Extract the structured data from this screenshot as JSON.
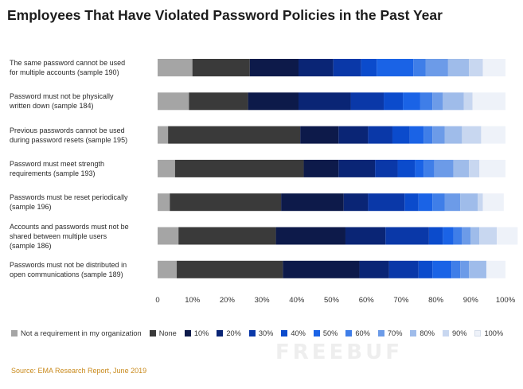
{
  "title": "Employees That Have Violated Password Policies in the Past Year",
  "source": "Source: EMA Research Report, June 2019",
  "watermark_text": "FREEBUF",
  "chart_data": {
    "type": "bar",
    "orientation": "horizontal",
    "stacked": true,
    "title": "Employees That Have Violated Password Policies in the Past Year",
    "xlabel": "",
    "ylabel": "",
    "xlim": [
      0,
      100
    ],
    "grid": false,
    "legend_position": "bottom",
    "x_ticks": [
      "0",
      "10%",
      "20%",
      "30%",
      "40%",
      "50%",
      "60%",
      "70%",
      "80%",
      "90%",
      "100%"
    ],
    "categories": [
      "The same password cannot be used for multiple accounts (sample 190)",
      "Password must not be physically written down (sample 184)",
      "Previous passwords cannot be used during password resets (sample 195)",
      "Password must meet strength requirements (sample 193)",
      "Passwords must be reset periodically (sample 196)",
      "Accounts and passwords must not be shared between multiple users (sample 186)",
      "Passwords must not be distributed in open communications (sample 189)"
    ],
    "category_lines": [
      [
        "The same password cannot be used",
        "for multiple accounts (sample 190)"
      ],
      [
        "Password must not be physically",
        "written down (sample 184)"
      ],
      [
        "Previous passwords cannot be used",
        "during password resets (sample 195)"
      ],
      [
        "Password must meet strength",
        "requirements (sample 193)"
      ],
      [
        "Passwords must be reset periodically",
        "(sample 196)"
      ],
      [
        "Accounts and passwords must not be",
        "shared between multiple users",
        "(sample 186)"
      ],
      [
        "Passwords must not be distributed in",
        "open communications (sample 189)"
      ]
    ],
    "series": [
      {
        "name": "Not a requirement in my organization",
        "color": "#a5a5a5",
        "values": [
          10,
          9,
          3,
          5,
          3.5,
          6,
          5.5
        ]
      },
      {
        "name": "None",
        "color": "#3a3a3a",
        "values": [
          16.5,
          17,
          38,
          37,
          32,
          28,
          30.5
        ]
      },
      {
        "name": "10%",
        "color": "#0d1a4a",
        "values": [
          14,
          14.5,
          11,
          10,
          18,
          20,
          22
        ]
      },
      {
        "name": "20%",
        "color": "#0a2575",
        "values": [
          10,
          15,
          8.5,
          10.5,
          7,
          11.5,
          8.5
        ]
      },
      {
        "name": "30%",
        "color": "#0a38a8",
        "values": [
          8,
          9.5,
          7,
          6.5,
          10.5,
          12.5,
          8.5
        ]
      },
      {
        "name": "40%",
        "color": "#0b4bcc",
        "values": [
          4.5,
          5.5,
          5,
          5,
          4,
          4,
          4
        ]
      },
      {
        "name": "50%",
        "color": "#1a63e6",
        "values": [
          10.5,
          5,
          4,
          2.5,
          4,
          3,
          5.5
        ]
      },
      {
        "name": "60%",
        "color": "#3f7ee8",
        "values": [
          3.5,
          3.5,
          2.5,
          3,
          3.5,
          2.5,
          2.5
        ]
      },
      {
        "name": "70%",
        "color": "#6c9be8",
        "values": [
          6.5,
          3,
          3.5,
          5.5,
          4.5,
          2.5,
          2.5
        ]
      },
      {
        "name": "80%",
        "color": "#9fbcea",
        "values": [
          6,
          6,
          5,
          4.5,
          5,
          2.5,
          5
        ]
      },
      {
        "name": "90%",
        "color": "#c8d7f0",
        "values": [
          4,
          2.5,
          5.5,
          3,
          1.5,
          5,
          0
        ]
      },
      {
        "name": "100%",
        "color": "#eef2f9",
        "values": [
          6.5,
          9.5,
          7,
          7.5,
          6,
          6,
          5.5
        ]
      }
    ]
  }
}
